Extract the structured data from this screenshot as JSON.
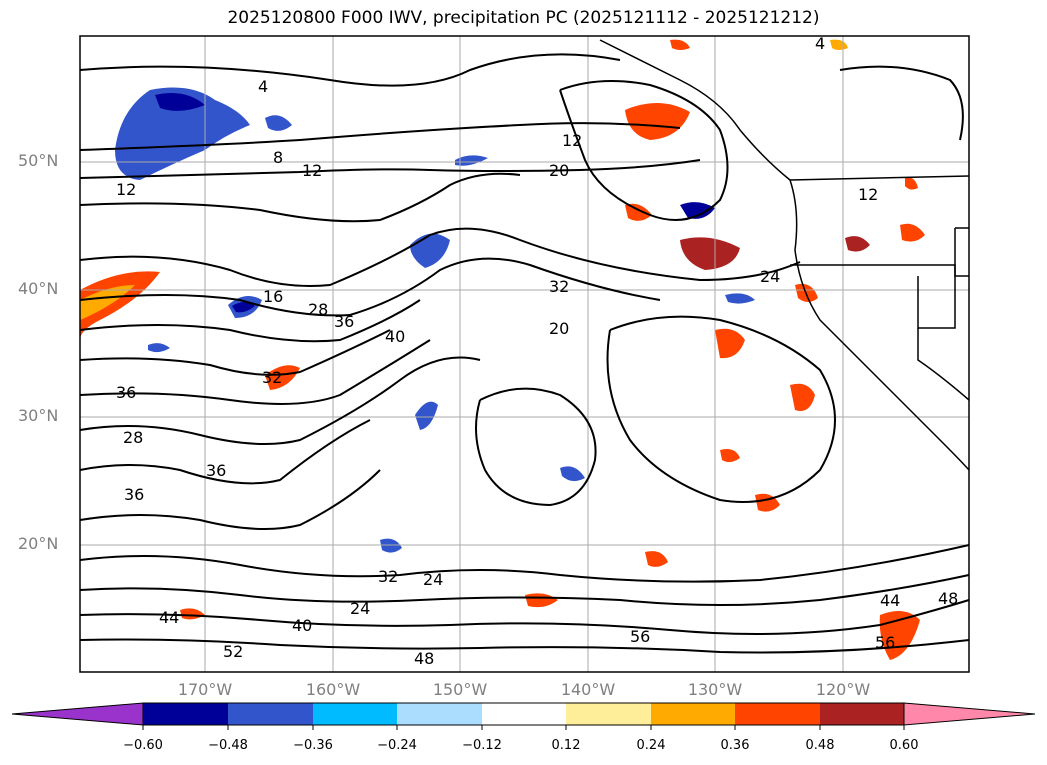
{
  "title": "2025120800 F000 IWV, precipitation PC (2025121112 - 2025121212)",
  "lat_labels": [
    "50°N",
    "40°N",
    "30°N",
    "20°N"
  ],
  "lon_labels": [
    "170°W",
    "160°W",
    "150°W",
    "140°W",
    "130°W",
    "120°W"
  ],
  "colorbar": {
    "ticks": [
      "−0.60",
      "−0.48",
      "−0.36",
      "−0.24",
      "−0.12",
      "0.12",
      "0.24",
      "0.36",
      "0.48",
      "0.60"
    ],
    "colors": [
      "#9933cc",
      "#000099",
      "#3355cc",
      "#00bbff",
      "#aaddff",
      "#ffffff",
      "#ffee99",
      "#ffaa00",
      "#ff4400",
      "#aa2222",
      "#ff88aa"
    ]
  },
  "contour_labels": [
    "4",
    "8",
    "12",
    "16",
    "20",
    "24",
    "28",
    "32",
    "36",
    "40",
    "44",
    "48",
    "52",
    "56"
  ],
  "map_colors": {
    "frame": "#000000",
    "grid": "#aaaaaa",
    "contour": "#000000"
  }
}
